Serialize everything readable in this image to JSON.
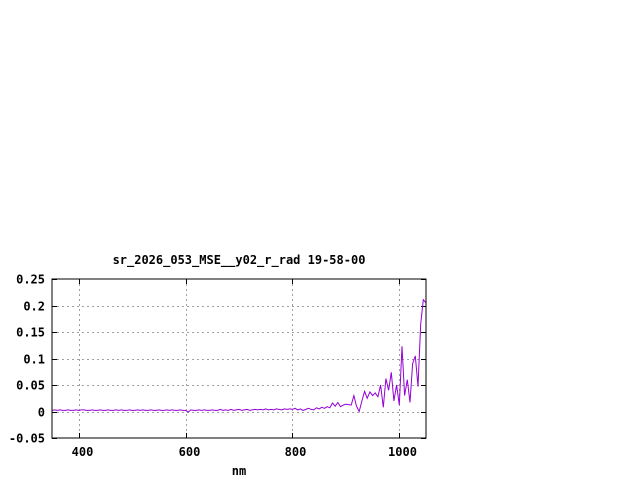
{
  "chart_data": {
    "type": "line",
    "title": "sr_2026_053_MSE__y02_r_rad 19-58-00",
    "xlabel": "nm",
    "ylabel": "",
    "xlim": [
      350,
      1050
    ],
    "ylim": [
      -0.05,
      0.25
    ],
    "xticks": [
      400,
      600,
      800,
      1000
    ],
    "xtick_labels": [
      "400",
      "600",
      "800",
      "1000"
    ],
    "yticks": [
      -0.05,
      0,
      0.05,
      0.1,
      0.15,
      0.2,
      0.25
    ],
    "ytick_labels": [
      "-0.05",
      "0",
      "0.05",
      "0.1",
      "0.15",
      "0.2",
      "0.25"
    ],
    "grid": true,
    "legend": "none",
    "series": [
      {
        "color": "#9400d3",
        "x_start": 350,
        "x_step": 5,
        "values": [
          0.002,
          0.003,
          0.002,
          0.003,
          0.002,
          0.002,
          0.003,
          0.002,
          0.002,
          0.003,
          0.002,
          0.003,
          0.003,
          0.002,
          0.002,
          0.003,
          0.002,
          0.002,
          0.003,
          0.002,
          0.002,
          0.003,
          0.002,
          0.002,
          0.003,
          0.002,
          0.003,
          0.002,
          0.002,
          0.003,
          0.002,
          0.002,
          0.003,
          0.002,
          0.003,
          0.002,
          0.002,
          0.003,
          0.002,
          0.002,
          0.003,
          0.002,
          0.002,
          0.003,
          0.002,
          0.003,
          0.002,
          0.002,
          0.003,
          0.002,
          0.002,
          -0.001,
          0.003,
          0.002,
          0.002,
          0.003,
          0.002,
          0.003,
          0.002,
          0.002,
          0.003,
          0.002,
          0.002,
          0.004,
          0.002,
          0.003,
          0.002,
          0.004,
          0.002,
          0.003,
          0.004,
          0.002,
          0.003,
          0.004,
          0.002,
          0.003,
          0.004,
          0.003,
          0.004,
          0.003,
          0.005,
          0.003,
          0.004,
          0.003,
          0.005,
          0.004,
          0.003,
          0.005,
          0.004,
          0.005,
          0.004,
          0.006,
          0.003,
          0.005,
          0.002,
          0.004,
          0.006,
          0.004,
          0.003,
          0.007,
          0.005,
          0.008,
          0.006,
          0.009,
          0.007,
          0.016,
          0.01,
          0.017,
          0.009,
          0.012,
          0.014,
          0.013,
          0.012,
          0.03,
          0.01,
          0.0,
          0.02,
          0.038,
          0.025,
          0.037,
          0.03,
          0.035,
          0.028,
          0.05,
          0.008,
          0.062,
          0.04,
          0.074,
          0.02,
          0.05,
          0.012,
          0.123,
          0.03,
          0.06,
          0.017,
          0.09,
          0.105,
          0.047,
          0.165,
          0.211,
          0.205
        ]
      }
    ]
  }
}
